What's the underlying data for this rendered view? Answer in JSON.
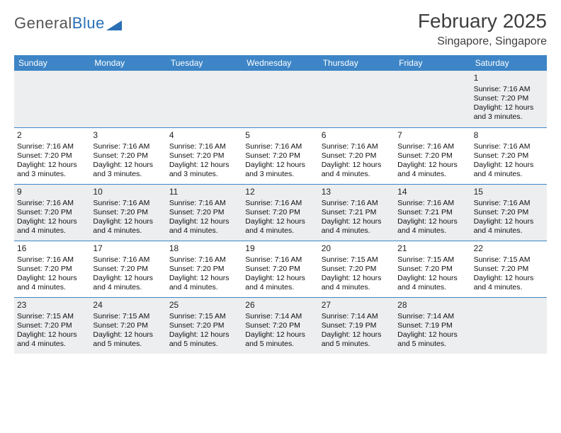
{
  "logo": {
    "text_general": "General",
    "text_blue": "Blue"
  },
  "header": {
    "month_title": "February 2025",
    "location": "Singapore, Singapore"
  },
  "style": {
    "header_bg": "#3d85c6",
    "header_text": "#ffffff",
    "row_even_bg": "#eceeef",
    "row_odd_bg": "#ffffff",
    "divider": "#3d85c6",
    "text_color": "#111111",
    "title_color": "#3e3e3e"
  },
  "weekdays": [
    "Sunday",
    "Monday",
    "Tuesday",
    "Wednesday",
    "Thursday",
    "Friday",
    "Saturday"
  ],
  "weeks": [
    [
      null,
      null,
      null,
      null,
      null,
      null,
      {
        "day": "1",
        "sunrise": "Sunrise: 7:16 AM",
        "sunset": "Sunset: 7:20 PM",
        "dl1": "Daylight: 12 hours",
        "dl2": "and 3 minutes."
      }
    ],
    [
      {
        "day": "2",
        "sunrise": "Sunrise: 7:16 AM",
        "sunset": "Sunset: 7:20 PM",
        "dl1": "Daylight: 12 hours",
        "dl2": "and 3 minutes."
      },
      {
        "day": "3",
        "sunrise": "Sunrise: 7:16 AM",
        "sunset": "Sunset: 7:20 PM",
        "dl1": "Daylight: 12 hours",
        "dl2": "and 3 minutes."
      },
      {
        "day": "4",
        "sunrise": "Sunrise: 7:16 AM",
        "sunset": "Sunset: 7:20 PM",
        "dl1": "Daylight: 12 hours",
        "dl2": "and 3 minutes."
      },
      {
        "day": "5",
        "sunrise": "Sunrise: 7:16 AM",
        "sunset": "Sunset: 7:20 PM",
        "dl1": "Daylight: 12 hours",
        "dl2": "and 3 minutes."
      },
      {
        "day": "6",
        "sunrise": "Sunrise: 7:16 AM",
        "sunset": "Sunset: 7:20 PM",
        "dl1": "Daylight: 12 hours",
        "dl2": "and 4 minutes."
      },
      {
        "day": "7",
        "sunrise": "Sunrise: 7:16 AM",
        "sunset": "Sunset: 7:20 PM",
        "dl1": "Daylight: 12 hours",
        "dl2": "and 4 minutes."
      },
      {
        "day": "8",
        "sunrise": "Sunrise: 7:16 AM",
        "sunset": "Sunset: 7:20 PM",
        "dl1": "Daylight: 12 hours",
        "dl2": "and 4 minutes."
      }
    ],
    [
      {
        "day": "9",
        "sunrise": "Sunrise: 7:16 AM",
        "sunset": "Sunset: 7:20 PM",
        "dl1": "Daylight: 12 hours",
        "dl2": "and 4 minutes."
      },
      {
        "day": "10",
        "sunrise": "Sunrise: 7:16 AM",
        "sunset": "Sunset: 7:20 PM",
        "dl1": "Daylight: 12 hours",
        "dl2": "and 4 minutes."
      },
      {
        "day": "11",
        "sunrise": "Sunrise: 7:16 AM",
        "sunset": "Sunset: 7:20 PM",
        "dl1": "Daylight: 12 hours",
        "dl2": "and 4 minutes."
      },
      {
        "day": "12",
        "sunrise": "Sunrise: 7:16 AM",
        "sunset": "Sunset: 7:20 PM",
        "dl1": "Daylight: 12 hours",
        "dl2": "and 4 minutes."
      },
      {
        "day": "13",
        "sunrise": "Sunrise: 7:16 AM",
        "sunset": "Sunset: 7:21 PM",
        "dl1": "Daylight: 12 hours",
        "dl2": "and 4 minutes."
      },
      {
        "day": "14",
        "sunrise": "Sunrise: 7:16 AM",
        "sunset": "Sunset: 7:21 PM",
        "dl1": "Daylight: 12 hours",
        "dl2": "and 4 minutes."
      },
      {
        "day": "15",
        "sunrise": "Sunrise: 7:16 AM",
        "sunset": "Sunset: 7:20 PM",
        "dl1": "Daylight: 12 hours",
        "dl2": "and 4 minutes."
      }
    ],
    [
      {
        "day": "16",
        "sunrise": "Sunrise: 7:16 AM",
        "sunset": "Sunset: 7:20 PM",
        "dl1": "Daylight: 12 hours",
        "dl2": "and 4 minutes."
      },
      {
        "day": "17",
        "sunrise": "Sunrise: 7:16 AM",
        "sunset": "Sunset: 7:20 PM",
        "dl1": "Daylight: 12 hours",
        "dl2": "and 4 minutes."
      },
      {
        "day": "18",
        "sunrise": "Sunrise: 7:16 AM",
        "sunset": "Sunset: 7:20 PM",
        "dl1": "Daylight: 12 hours",
        "dl2": "and 4 minutes."
      },
      {
        "day": "19",
        "sunrise": "Sunrise: 7:16 AM",
        "sunset": "Sunset: 7:20 PM",
        "dl1": "Daylight: 12 hours",
        "dl2": "and 4 minutes."
      },
      {
        "day": "20",
        "sunrise": "Sunrise: 7:15 AM",
        "sunset": "Sunset: 7:20 PM",
        "dl1": "Daylight: 12 hours",
        "dl2": "and 4 minutes."
      },
      {
        "day": "21",
        "sunrise": "Sunrise: 7:15 AM",
        "sunset": "Sunset: 7:20 PM",
        "dl1": "Daylight: 12 hours",
        "dl2": "and 4 minutes."
      },
      {
        "day": "22",
        "sunrise": "Sunrise: 7:15 AM",
        "sunset": "Sunset: 7:20 PM",
        "dl1": "Daylight: 12 hours",
        "dl2": "and 4 minutes."
      }
    ],
    [
      {
        "day": "23",
        "sunrise": "Sunrise: 7:15 AM",
        "sunset": "Sunset: 7:20 PM",
        "dl1": "Daylight: 12 hours",
        "dl2": "and 4 minutes."
      },
      {
        "day": "24",
        "sunrise": "Sunrise: 7:15 AM",
        "sunset": "Sunset: 7:20 PM",
        "dl1": "Daylight: 12 hours",
        "dl2": "and 5 minutes."
      },
      {
        "day": "25",
        "sunrise": "Sunrise: 7:15 AM",
        "sunset": "Sunset: 7:20 PM",
        "dl1": "Daylight: 12 hours",
        "dl2": "and 5 minutes."
      },
      {
        "day": "26",
        "sunrise": "Sunrise: 7:14 AM",
        "sunset": "Sunset: 7:20 PM",
        "dl1": "Daylight: 12 hours",
        "dl2": "and 5 minutes."
      },
      {
        "day": "27",
        "sunrise": "Sunrise: 7:14 AM",
        "sunset": "Sunset: 7:19 PM",
        "dl1": "Daylight: 12 hours",
        "dl2": "and 5 minutes."
      },
      {
        "day": "28",
        "sunrise": "Sunrise: 7:14 AM",
        "sunset": "Sunset: 7:19 PM",
        "dl1": "Daylight: 12 hours",
        "dl2": "and 5 minutes."
      },
      null
    ]
  ]
}
